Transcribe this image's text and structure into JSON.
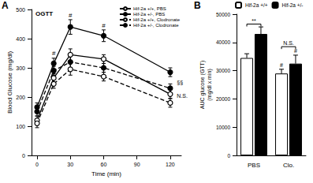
{
  "chart_data": [
    {
      "type": "line",
      "panel": "A",
      "title": "OGTT",
      "xlabel": "Time (min)",
      "ylabel": "Blood Glucose (mg/dl)",
      "x": [
        0,
        15,
        30,
        60,
        120
      ],
      "xlim": [
        -5,
        130
      ],
      "xticks": [
        0,
        30,
        60,
        90,
        120
      ],
      "ylim": [
        0,
        500
      ],
      "yticks": [
        0,
        100,
        200,
        300,
        400,
        500
      ],
      "grid": false,
      "legend": "upper right",
      "series": [
        {
          "name": "Hif-2a +/+, PBS",
          "color": "#000000",
          "marker": "open circle",
          "line_style": "solid",
          "values": [
            120,
            265,
            345,
            330,
            210
          ],
          "errors": [
            15,
            15,
            20,
            15,
            15
          ]
        },
        {
          "name": "Hif-2a +/-, PBS",
          "color": "#000000",
          "marker": "filled circle",
          "line_style": "solid",
          "values": [
            165,
            315,
            440,
            410,
            285
          ],
          "errors": [
            15,
            18,
            25,
            20,
            15
          ]
        },
        {
          "name": "Hif-2a +/+, Clodronate",
          "color": "#000000",
          "marker": "open circle",
          "line_style": "dashed",
          "values": [
            110,
            245,
            295,
            270,
            180
          ],
          "errors": [
            15,
            15,
            20,
            15,
            15
          ]
        },
        {
          "name": "Hif-2a +/-, Clodronate",
          "color": "#000000",
          "marker": "filled circle",
          "line_style": "dashed",
          "values": [
            150,
            290,
            320,
            300,
            230
          ],
          "errors": [
            15,
            15,
            20,
            15,
            15
          ]
        }
      ],
      "annotations": [
        {
          "text": "#",
          "x": 15,
          "y": 340
        },
        {
          "text": "#",
          "x": 30,
          "y": 470
        },
        {
          "text": "#",
          "x": 60,
          "y": 435
        },
        {
          "text": "§§",
          "x": 126,
          "y": 250
        },
        {
          "text": "N.S.",
          "x": 126,
          "y": 205
        }
      ]
    },
    {
      "type": "bar",
      "panel": "B",
      "ylabel": "AUC glucose (GTT)\n(mg/dl x min)",
      "categories": [
        "PBS",
        "Clo."
      ],
      "ylim": [
        0,
        50000
      ],
      "yticks": [
        0,
        10000,
        20000,
        30000,
        40000,
        50000
      ],
      "grid": false,
      "legend": "upper left",
      "series": [
        {
          "name": "Hif-2a +/+",
          "color": "#ffffff",
          "values": [
            34500,
            29000
          ],
          "errors": [
            1500,
            1500
          ]
        },
        {
          "name": "Hif-2a +/-",
          "color": "#000000",
          "values": [
            43000,
            32500
          ],
          "errors": [
            2500,
            3000
          ]
        }
      ],
      "annotations": [
        {
          "text": "**",
          "category": "PBS",
          "y": 46500
        },
        {
          "text": "N.S.",
          "category": "Clo.",
          "y": 38500
        },
        {
          "text": "#",
          "category": "Clo.",
          "series": "Hif-2a +/+",
          "y": 31000
        },
        {
          "text": "#",
          "category": "Clo.",
          "series": "Hif-2a +/-",
          "y": 36000
        }
      ]
    }
  ]
}
